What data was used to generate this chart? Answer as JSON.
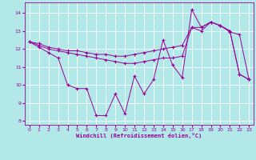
{
  "xlabel": "Windchill (Refroidissement éolien,°C)",
  "bg_color": "#b2e8e8",
  "line_color": "#990099",
  "grid_color": "#ffffff",
  "text_color": "#990099",
  "xlim": [
    -0.5,
    23.5
  ],
  "ylim": [
    7.8,
    14.6
  ],
  "xticks": [
    0,
    1,
    2,
    3,
    4,
    5,
    6,
    7,
    8,
    9,
    10,
    11,
    12,
    13,
    14,
    15,
    16,
    17,
    18,
    19,
    20,
    21,
    22,
    23
  ],
  "yticks": [
    8,
    9,
    10,
    11,
    12,
    13,
    14
  ],
  "series1_x": [
    0,
    1,
    2,
    3,
    4,
    5,
    6,
    7,
    8,
    9,
    10,
    11,
    12,
    13,
    14,
    15,
    16,
    17,
    18,
    19,
    20,
    21,
    22,
    23
  ],
  "series1_y": [
    12.4,
    12.1,
    11.8,
    11.5,
    10.0,
    9.8,
    9.8,
    8.3,
    8.3,
    9.5,
    8.4,
    10.5,
    9.5,
    10.3,
    12.5,
    11.1,
    10.4,
    14.2,
    13.2,
    13.5,
    13.3,
    13.0,
    10.6,
    10.3
  ],
  "series2_x": [
    0,
    1,
    2,
    3,
    4,
    5,
    6,
    7,
    8,
    9,
    10,
    11,
    12,
    13,
    14,
    15,
    16,
    17,
    18,
    19,
    20,
    21,
    22,
    23
  ],
  "series2_y": [
    12.4,
    12.2,
    12.0,
    11.9,
    11.8,
    11.7,
    11.6,
    11.5,
    11.4,
    11.3,
    11.2,
    11.2,
    11.3,
    11.4,
    11.5,
    11.5,
    11.6,
    13.2,
    13.2,
    13.5,
    13.3,
    13.0,
    10.6,
    10.3
  ],
  "series3_x": [
    0,
    1,
    2,
    3,
    4,
    5,
    6,
    7,
    8,
    9,
    10,
    11,
    12,
    13,
    14,
    15,
    16,
    17,
    18,
    19,
    20,
    21,
    22,
    23
  ],
  "series3_y": [
    12.4,
    12.3,
    12.1,
    12.0,
    11.9,
    11.9,
    11.8,
    11.7,
    11.7,
    11.6,
    11.6,
    11.7,
    11.8,
    11.9,
    12.0,
    12.1,
    12.2,
    13.2,
    13.0,
    13.5,
    13.3,
    12.95,
    12.8,
    10.3
  ]
}
